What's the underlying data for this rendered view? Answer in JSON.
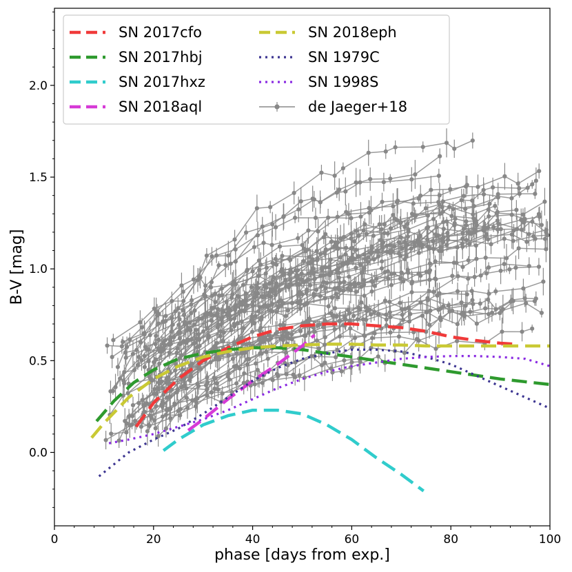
{
  "chart_data": {
    "type": "line",
    "title": "",
    "xlabel": "phase [days from exp.]",
    "ylabel": "B-V [mag]",
    "xlim": [
      0,
      100
    ],
    "ylim": [
      -0.4,
      2.42
    ],
    "x_ticks": [
      0,
      20,
      40,
      60,
      80,
      100
    ],
    "y_ticks": [
      0.0,
      0.5,
      1.0,
      1.5,
      2.0
    ],
    "x_tick_labels": [
      "0",
      "20",
      "40",
      "60",
      "80",
      "100"
    ],
    "y_tick_labels": [
      "0.0",
      "0.5",
      "1.0",
      "1.5",
      "2.0"
    ],
    "grid": false,
    "legend_position": "top-left",
    "series": [
      {
        "name": "SN 2017cfo",
        "color": "#f03a3a",
        "style": "dashed",
        "x": [
          16.5,
          20,
          25,
          30,
          35,
          40,
          45,
          50,
          55,
          60,
          65,
          70,
          75,
          80,
          85,
          90,
          93
        ],
        "y": [
          0.14,
          0.27,
          0.4,
          0.5,
          0.57,
          0.63,
          0.67,
          0.69,
          0.7,
          0.7,
          0.69,
          0.68,
          0.66,
          0.63,
          0.61,
          0.595,
          0.59
        ]
      },
      {
        "name": "SN 2017hbj",
        "color": "#2e9a2e",
        "style": "dashed",
        "x": [
          8.5,
          12,
          16,
          20,
          25,
          30,
          35,
          40,
          45,
          50,
          55,
          60,
          65,
          70,
          75,
          80,
          85,
          90,
          95,
          100
        ],
        "y": [
          0.17,
          0.28,
          0.38,
          0.45,
          0.51,
          0.54,
          0.56,
          0.57,
          0.57,
          0.56,
          0.54,
          0.52,
          0.5,
          0.48,
          0.46,
          0.44,
          0.42,
          0.4,
          0.385,
          0.37
        ]
      },
      {
        "name": "SN 2017hxz",
        "color": "#30cccc",
        "style": "dashed",
        "x": [
          22,
          25,
          30,
          35,
          40,
          45,
          50,
          55,
          60,
          65,
          70,
          74.5
        ],
        "y": [
          0.01,
          0.07,
          0.15,
          0.2,
          0.23,
          0.23,
          0.21,
          0.15,
          0.07,
          -0.03,
          -0.12,
          -0.21
        ]
      },
      {
        "name": "SN 2018aql",
        "color": "#d63ad6",
        "style": "dashed",
        "x": [
          27,
          30,
          35,
          40,
          45,
          50,
          52.5
        ],
        "y": [
          0.12,
          0.18,
          0.29,
          0.39,
          0.48,
          0.58,
          0.64
        ]
      },
      {
        "name": "SN 2018eph",
        "color": "#c9c934",
        "style": "dashed",
        "x": [
          7.5,
          10,
          15,
          20,
          25,
          30,
          35,
          40,
          45,
          50,
          55,
          60,
          65,
          70,
          75,
          80,
          85,
          90,
          95,
          100
        ],
        "y": [
          0.08,
          0.16,
          0.3,
          0.4,
          0.47,
          0.52,
          0.55,
          0.57,
          0.58,
          0.585,
          0.59,
          0.59,
          0.585,
          0.585,
          0.58,
          0.58,
          0.58,
          0.58,
          0.58,
          0.58
        ]
      },
      {
        "name": "SN 1979C",
        "color": "#3c3591",
        "style": "dotted",
        "x": [
          9,
          15,
          20,
          25,
          30,
          35,
          40,
          45,
          50,
          55,
          60,
          65,
          70,
          75,
          80,
          85,
          90,
          95,
          100
        ],
        "y": [
          -0.13,
          0.0,
          0.07,
          0.13,
          0.21,
          0.3,
          0.39,
          0.46,
          0.51,
          0.54,
          0.56,
          0.56,
          0.55,
          0.52,
          0.48,
          0.42,
          0.36,
          0.3,
          0.24
        ]
      },
      {
        "name": "SN 1998S",
        "color": "#8a2be2",
        "style": "dotted",
        "x": [
          11,
          15,
          20,
          25,
          30,
          35,
          40,
          45,
          50,
          55,
          60,
          65,
          70,
          75,
          80,
          85,
          90,
          95,
          100
        ],
        "y": [
          0.05,
          0.07,
          0.1,
          0.14,
          0.18,
          0.23,
          0.29,
          0.35,
          0.4,
          0.44,
          0.47,
          0.49,
          0.51,
          0.52,
          0.525,
          0.525,
          0.52,
          0.51,
          0.47
        ]
      },
      {
        "name": "de Jaeger+18",
        "color": "#888888",
        "style": "solid-markers",
        "x": [],
        "y": []
      }
    ]
  }
}
